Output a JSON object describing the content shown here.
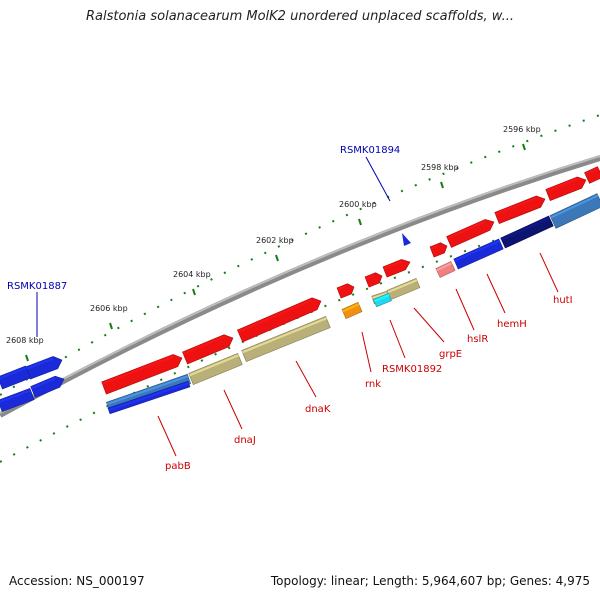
{
  "title": "Ralstonia solanacearum MolK2 unordered unplaced scaffolds, w...",
  "accession": "Accession: NS_000197",
  "summary": "Topology: linear; Length: 5,964,607 bp; Genes: 4,975",
  "colors": {
    "backbone": "#8a8a8a",
    "tick": "#1a7a1a",
    "feature_label": "#cc0000",
    "locus_label": "#0000b0",
    "gene_red": "#ee1111",
    "gene_blue": "#1a2ad8",
    "gene_khaki": "#b8b078",
    "gene_navy": "#0c1470",
    "gene_steel": "#3c78b8",
    "gene_orange": "#f09010",
    "gene_cyan": "#20d8f0",
    "gene_pink": "#f08080"
  },
  "scale": {
    "ticks": [
      {
        "label": "2596 kbp"
      },
      {
        "label": "2598 kbp"
      },
      {
        "label": "2600 kbp"
      },
      {
        "label": "2602 kbp"
      },
      {
        "label": "2604 kbp"
      },
      {
        "label": "2606 kbp"
      },
      {
        "label": "2608 kbp"
      }
    ]
  },
  "loci": [
    {
      "label": "RSMK01894"
    },
    {
      "label": "RSMK01887"
    }
  ],
  "genes": [
    {
      "label": "hutI"
    },
    {
      "label": "hemH"
    },
    {
      "label": "hslR"
    },
    {
      "label": "grpE"
    },
    {
      "label": "RSMK01892"
    },
    {
      "label": "rnk"
    },
    {
      "label": "dnaK"
    },
    {
      "label": "dnaJ"
    },
    {
      "label": "pabB"
    }
  ]
}
